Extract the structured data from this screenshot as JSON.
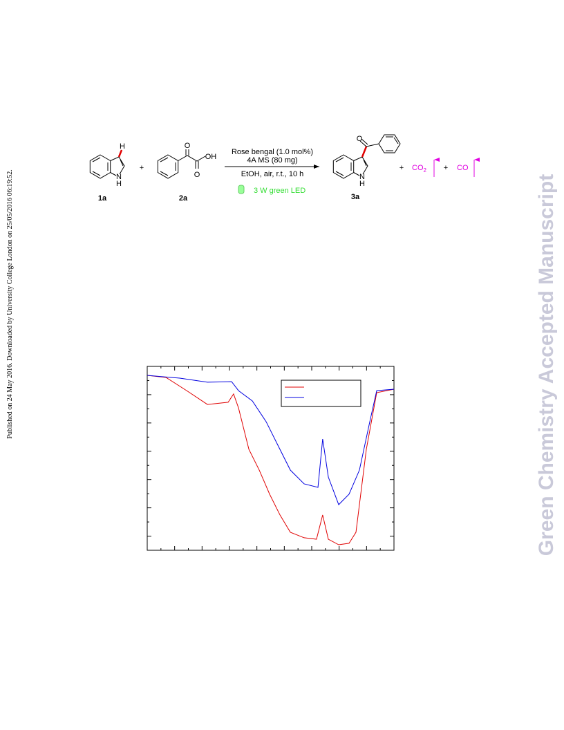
{
  "sidebar": "Published on 24 May 2016. Downloaded by University College London on 25/05/2016 06:19:52.",
  "watermark": "Green Chemistry Accepted Manuscript",
  "scheme": {
    "atoms": {
      "h": "H",
      "n": "N",
      "nh": "H",
      "o1": "O",
      "oh": "OH",
      "o2": "O",
      "n3": "N",
      "nh3": "H",
      "o3": "O"
    },
    "compounds": [
      "1a",
      "2a",
      "3a"
    ],
    "plus": "+",
    "conditions": [
      "Rose bengal (1.0 mol%)",
      "4A MS (80 mg)",
      "EtOH, air, r.t., 10 h"
    ],
    "light": "3 W green LED",
    "co2": {
      "text": "CO",
      "sub": "2"
    },
    "co": "CO"
  },
  "chart_data": {
    "type": "line",
    "xlim": [
      0,
      100
    ],
    "ylim": [
      0,
      100
    ],
    "series": [
      {
        "color": "#e00000",
        "x": [
          0,
          7.6,
          16.0,
          24.4,
          32.8,
          35.0,
          37.0,
          41.2,
          45.4,
          49.6,
          53.8,
          58.0,
          63.6,
          68.6,
          71.1,
          73.4,
          77.6,
          81.8,
          84.6,
          88.8,
          93.0,
          100
        ],
        "values": [
          95.1,
          94.0,
          86.8,
          79.3,
          80.5,
          85.0,
          77.4,
          54.9,
          43.6,
          30.5,
          19.2,
          9.8,
          6.8,
          6.0,
          19.2,
          6.0,
          3.0,
          3.8,
          9.8,
          54.9,
          85.7,
          87.6
        ]
      },
      {
        "color": "#0000e0",
        "x": [
          0,
          13.2,
          24.4,
          34.2,
          37.0,
          42.6,
          48.2,
          52.4,
          58.0,
          63.6,
          69.2,
          71.1,
          73.4,
          77.6,
          81.8,
          86.0,
          90.2,
          93.0,
          100
        ],
        "values": [
          95.1,
          93.6,
          91.4,
          91.7,
          86.8,
          81.2,
          69.9,
          58.6,
          43.6,
          36.1,
          34.2,
          60.5,
          39.8,
          24.8,
          30.5,
          43.6,
          69.9,
          86.8,
          87.6
        ]
      }
    ]
  }
}
